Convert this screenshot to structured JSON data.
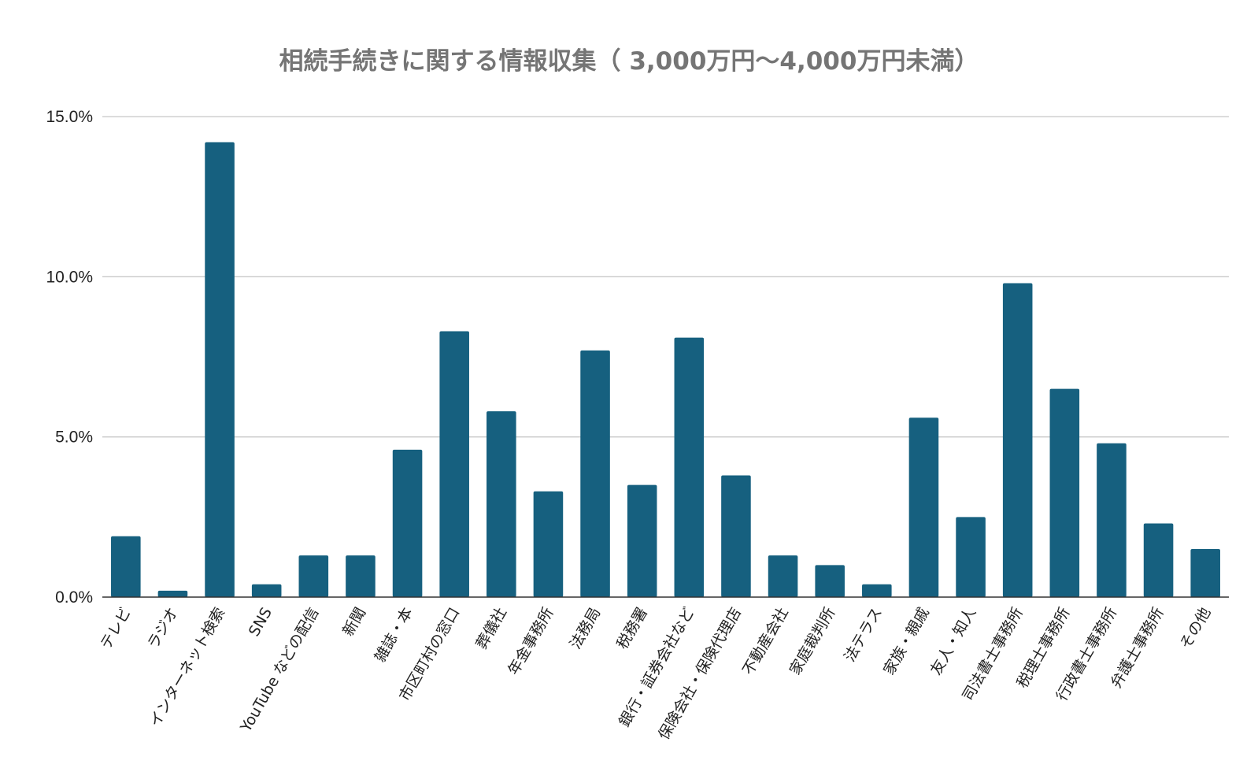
{
  "chart_data": {
    "type": "bar",
    "title": "相続手続きに関する情報収集（ 3,000万円～4,000万円未満）",
    "xlabel": "",
    "ylabel": "",
    "ylim": [
      0,
      15
    ],
    "yticks": [
      {
        "value": 0,
        "label": "0.0%"
      },
      {
        "value": 5,
        "label": "5.0%"
      },
      {
        "value": 10,
        "label": "10.0%"
      },
      {
        "value": 15,
        "label": "15.0%"
      }
    ],
    "grid": true,
    "legend": "none",
    "bar_color": "#16607f",
    "categories": [
      "テレビ",
      "ラジオ",
      "インターネット検索",
      "SNS",
      "YouTube などの配信",
      "新聞",
      "雑誌・本",
      "市区町村の窓口",
      "葬儀社",
      "年金事務所",
      "法務局",
      "税務署",
      "銀行・証券会社など",
      "保険会社・保険代理店",
      "不動産会社",
      "家庭裁判所",
      "法テラス",
      "家族・親戚",
      "友人・知人",
      "司法書士事務所",
      "税理士事務所",
      "行政書士事務所",
      "弁護士事務所",
      "その他"
    ],
    "values": [
      1.9,
      0.2,
      14.2,
      0.4,
      1.3,
      1.3,
      4.6,
      8.3,
      5.8,
      3.3,
      7.7,
      3.5,
      8.1,
      3.8,
      1.3,
      1.0,
      0.4,
      5.6,
      2.5,
      9.8,
      6.5,
      4.8,
      2.3,
      1.5
    ]
  }
}
